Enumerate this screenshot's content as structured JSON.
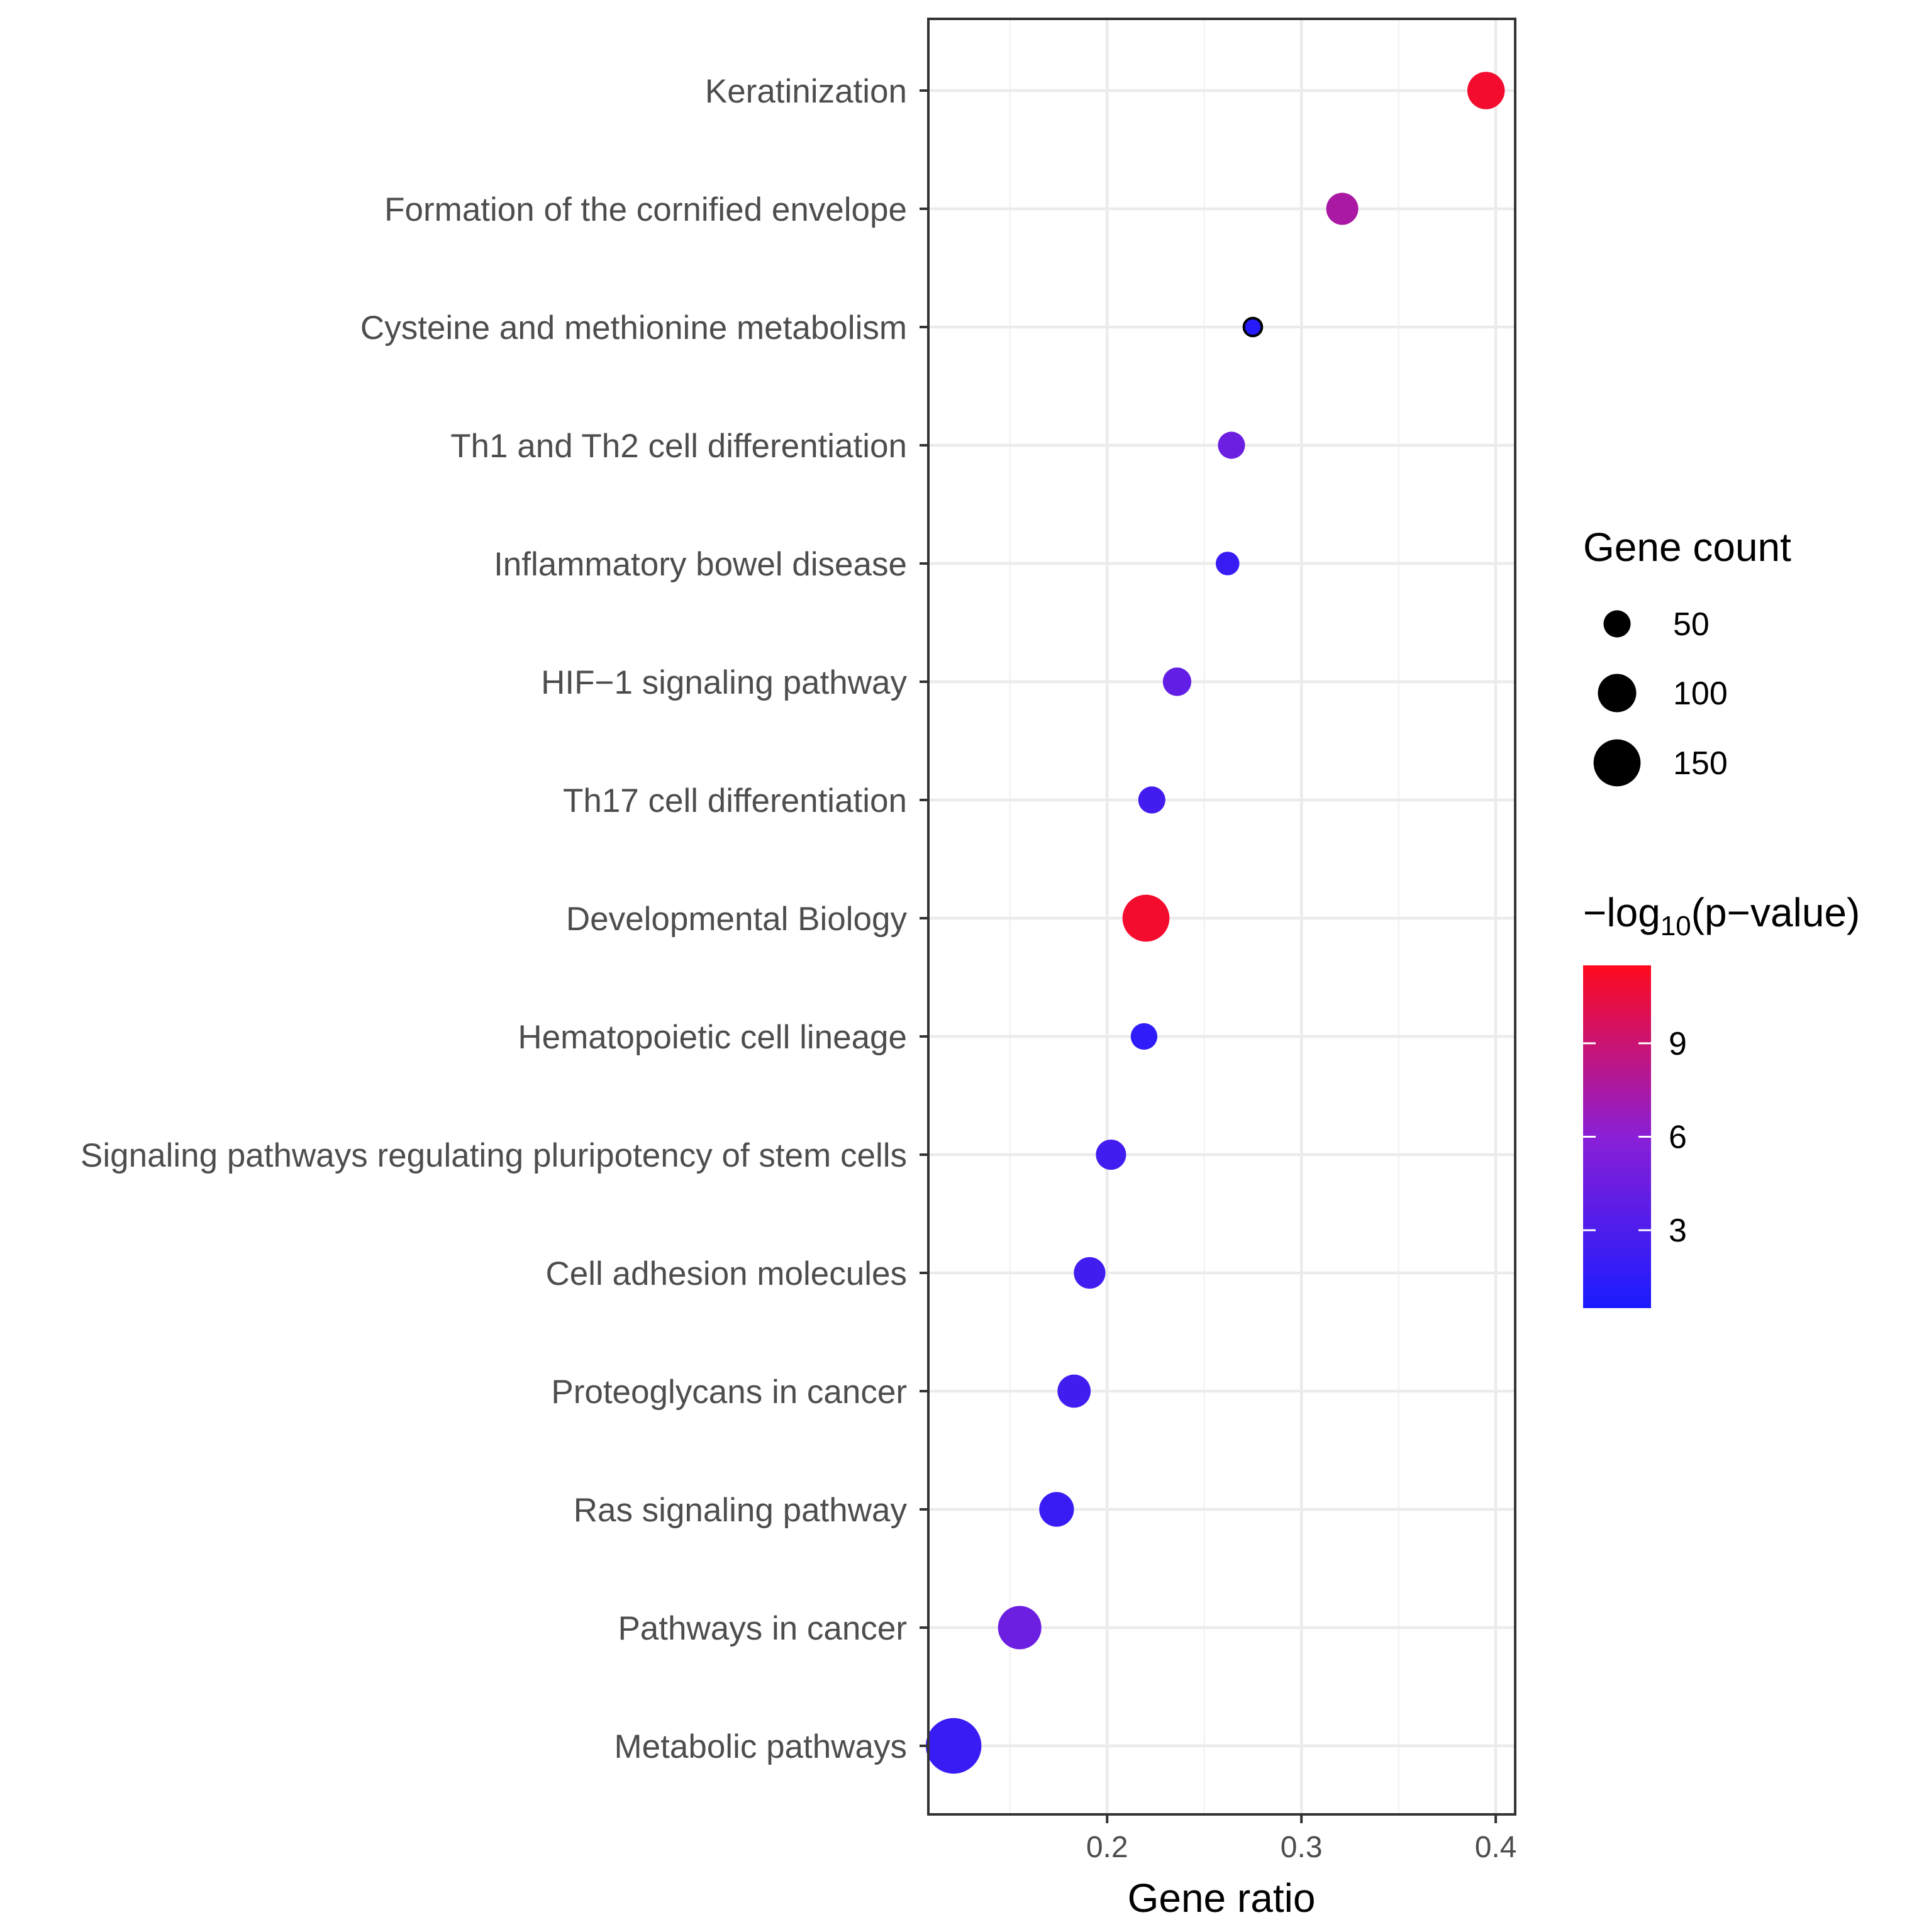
{
  "chart_data": {
    "type": "scatter",
    "xlabel": "Gene ratio",
    "xlim": [
      0.108,
      0.41
    ],
    "xticks": [
      0.2,
      0.3,
      0.4
    ],
    "xtick_labels": [
      "0.2",
      "0.3",
      "0.4"
    ],
    "grid": true,
    "categories": [
      "Keratinization",
      "Formation of the cornified envelope",
      "Cysteine and methionine metabolism",
      "Th1 and Th2 cell differentiation",
      "Inflammatory bowel disease",
      "HIF−1 signaling pathway",
      "Th17 cell differentiation",
      "Developmental Biology",
      "Hematopoietic cell lineage",
      "Signaling pathways regulating pluripotency of stem cells",
      "Cell adhesion molecules",
      "Proteoglycans in cancer",
      "Ras signaling pathway",
      "Pathways in cancer",
      "Metabolic pathways"
    ],
    "points": [
      {
        "y": "Keratinization",
        "x": 0.395,
        "gene_count": 95,
        "neg_log10_p": 11.0
      },
      {
        "y": "Formation of the cornified envelope",
        "x": 0.321,
        "gene_count": 70,
        "neg_log10_p": 7.5
      },
      {
        "y": "Cysteine and methionine metabolism",
        "x": 0.275,
        "gene_count": 22,
        "neg_log10_p": 1.0
      },
      {
        "y": "Th1 and Th2 cell differentiation",
        "x": 0.264,
        "gene_count": 50,
        "neg_log10_p": 4.5
      },
      {
        "y": "Inflammatory bowel disease",
        "x": 0.262,
        "gene_count": 38,
        "neg_log10_p": 2.0
      },
      {
        "y": "HIF−1 signaling pathway",
        "x": 0.236,
        "gene_count": 55,
        "neg_log10_p": 4.0
      },
      {
        "y": "Th17 cell differentiation",
        "x": 0.223,
        "gene_count": 50,
        "neg_log10_p": 2.5
      },
      {
        "y": "Developmental Biology",
        "x": 0.22,
        "gene_count": 150,
        "neg_log10_p": 11.0
      },
      {
        "y": "Hematopoietic cell lineage",
        "x": 0.219,
        "gene_count": 48,
        "neg_log10_p": 1.5
      },
      {
        "y": "Signaling pathways regulating pluripotency of stem cells",
        "x": 0.202,
        "gene_count": 62,
        "neg_log10_p": 2.5
      },
      {
        "y": "Cell adhesion molecules",
        "x": 0.191,
        "gene_count": 68,
        "neg_log10_p": 2.5
      },
      {
        "y": "Proteoglycans in cancer",
        "x": 0.183,
        "gene_count": 75,
        "neg_log10_p": 2.5
      },
      {
        "y": "Ras signaling pathway",
        "x": 0.174,
        "gene_count": 82,
        "neg_log10_p": 2.0
      },
      {
        "y": "Pathways in cancer",
        "x": 0.155,
        "gene_count": 128,
        "neg_log10_p": 4.5
      },
      {
        "y": "Metabolic pathways",
        "x": 0.121,
        "gene_count": 210,
        "neg_log10_p": 2.0
      }
    ],
    "size_legend": {
      "title": "Gene count",
      "values": [
        50,
        100,
        150
      ],
      "labels": [
        "50",
        "100",
        "150"
      ]
    },
    "color_legend": {
      "title_prefix": "−log",
      "title_sub": "10",
      "title_suffix": "(p−value)",
      "range": [
        0.5,
        11.5
      ],
      "ticks": [
        3,
        6,
        9
      ],
      "tick_labels": [
        "3",
        "6",
        "9"
      ],
      "low_color": "#1b1bff",
      "mid_color": "#8a1fd6",
      "high_color": "#ff0a1e"
    },
    "legend_position": "right"
  }
}
